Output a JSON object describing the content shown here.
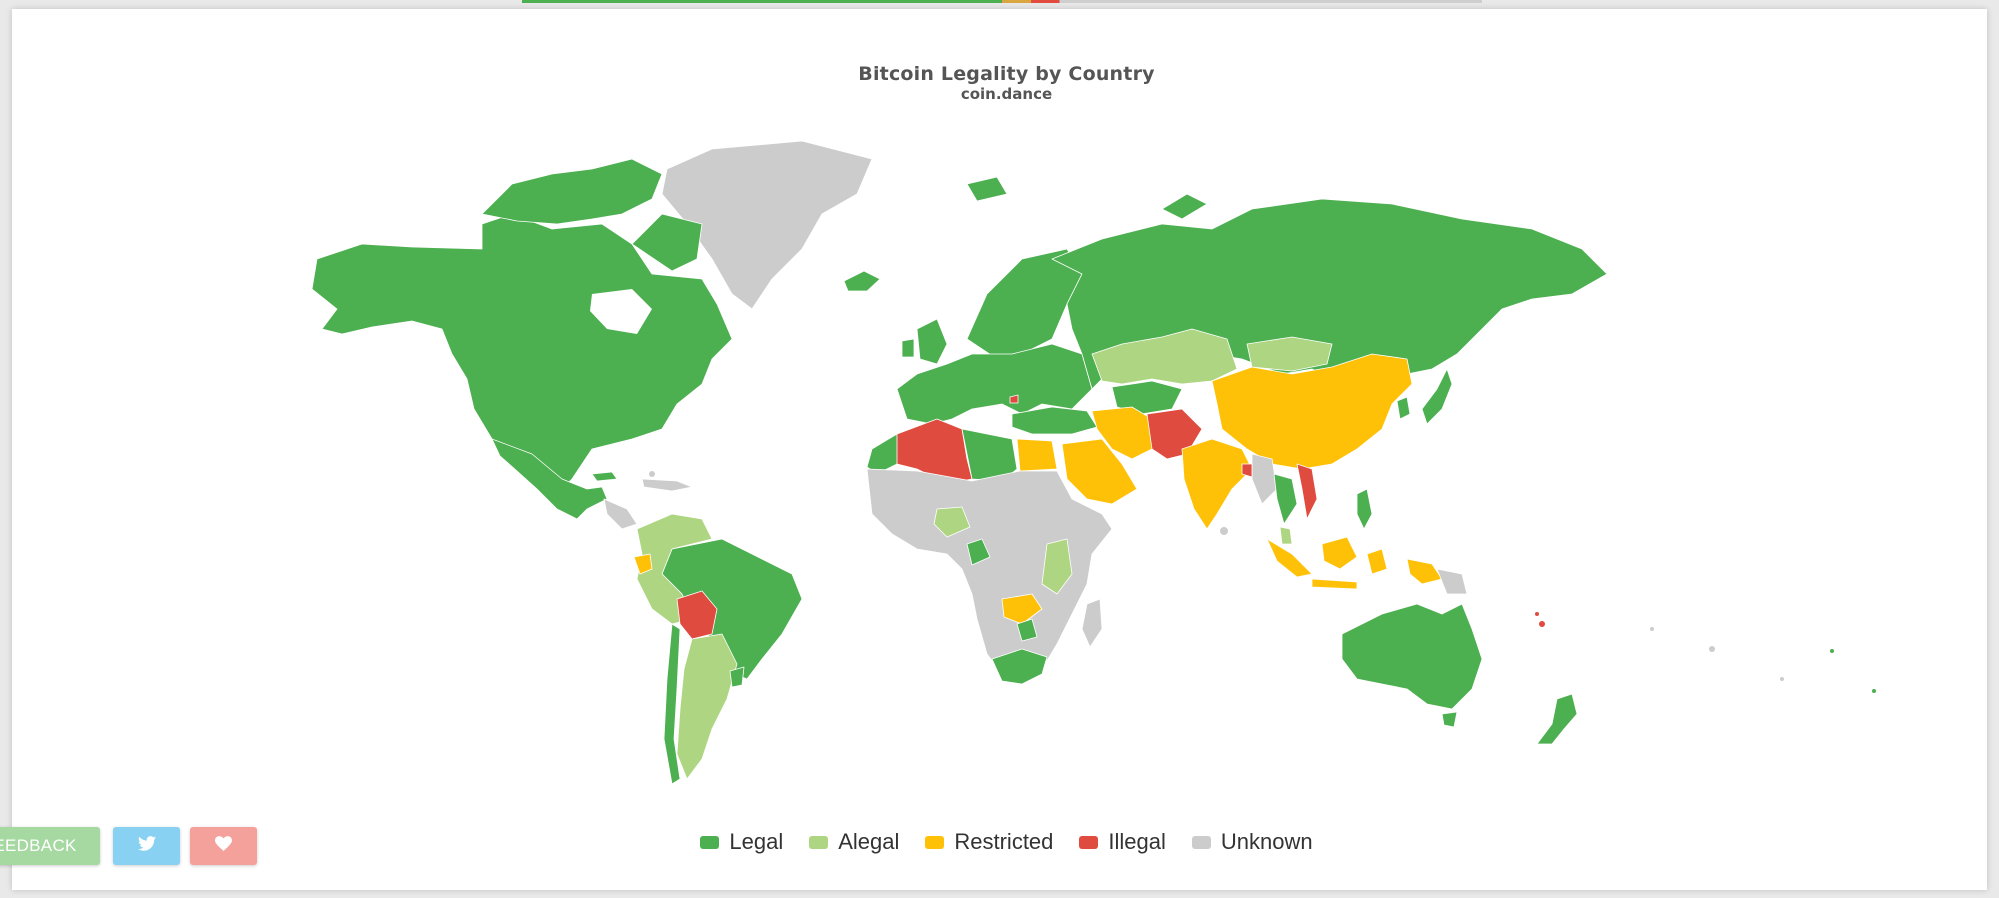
{
  "map": {
    "title": "Bitcoin Legality by Country",
    "subtitle": "coin.dance",
    "legend": [
      {
        "label": "Legal",
        "color": "#4caf50"
      },
      {
        "label": "Alegal",
        "color": "#aed581"
      },
      {
        "label": "Restricted",
        "color": "#ffc107"
      },
      {
        "label": "Illegal",
        "color": "#e04b3f"
      },
      {
        "label": "Unknown",
        "color": "#cccccc"
      }
    ]
  },
  "buttons": {
    "feedback_label": "EEDBACK",
    "twitter_icon": "twitter-icon",
    "heart_icon": "heart-icon"
  }
}
